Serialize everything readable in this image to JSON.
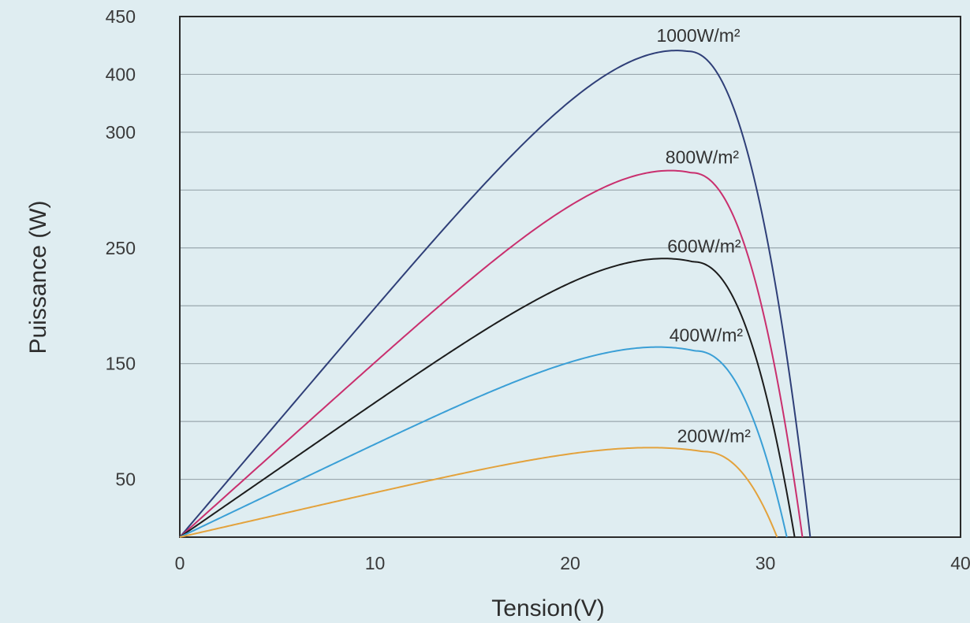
{
  "chart_data": {
    "type": "line",
    "xlabel": "Tension(V)",
    "ylabel": "Puissance (W)",
    "xlim": [
      0,
      40
    ],
    "x_ticks": [
      "0",
      "10",
      "20",
      "30",
      "40"
    ],
    "y_ticks": [
      "50",
      "150",
      "250",
      "300",
      "400",
      "450"
    ],
    "y_tick_grid_index": [
      1,
      3,
      5,
      7,
      8,
      9
    ],
    "y_grid_lines": 9,
    "grid": "horizontal",
    "series": [
      {
        "name": "1000W/m²",
        "color": "#2f3f78",
        "vmp": 26.0,
        "pmax": 420,
        "voc": 32.3
      },
      {
        "name": "800W/m²",
        "color": "#c92f6e",
        "vmp": 26.2,
        "pmax": 315,
        "voc": 31.9
      },
      {
        "name": "600W/m²",
        "color": "#1c1c1c",
        "vmp": 26.3,
        "pmax": 238,
        "voc": 31.5
      },
      {
        "name": "400W/m²",
        "color": "#3a9fd6",
        "vmp": 26.4,
        "pmax": 161,
        "voc": 31.1
      },
      {
        "name": "200W/m²",
        "color": "#e3a23c",
        "vmp": 26.8,
        "pmax": 74,
        "voc": 30.6
      }
    ]
  }
}
